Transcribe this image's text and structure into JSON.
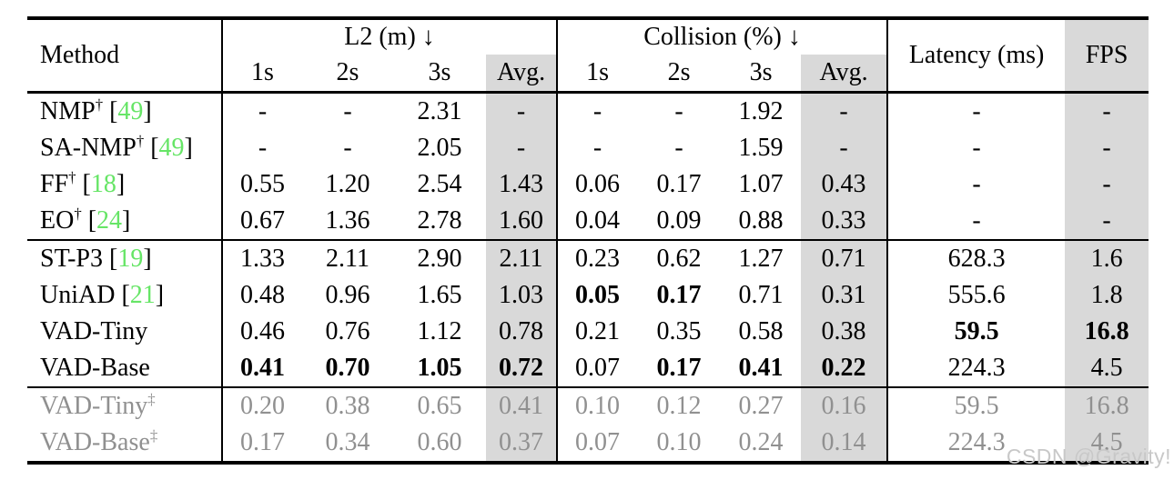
{
  "table": {
    "header": {
      "method": "Method",
      "l2_label": "L2 (m) ↓",
      "collision_label": "Collision (%) ↓",
      "sub_labels": [
        "1s",
        "2s",
        "3s",
        "Avg."
      ],
      "latency": "Latency (ms)",
      "fps": "FPS"
    },
    "groups": [
      {
        "muted": false,
        "rows": [
          {
            "name": "NMP",
            "marker": "†",
            "cite": "49",
            "cells": [
              "-",
              "-",
              "2.31",
              "-",
              "-",
              "-",
              "1.92",
              "-",
              "-",
              "-"
            ],
            "bold": []
          },
          {
            "name": "SA-NMP",
            "marker": "†",
            "cite": "49",
            "cells": [
              "-",
              "-",
              "2.05",
              "-",
              "-",
              "-",
              "1.59",
              "-",
              "-",
              "-"
            ],
            "bold": []
          },
          {
            "name": "FF",
            "marker": "†",
            "cite": "18",
            "cells": [
              "0.55",
              "1.20",
              "2.54",
              "1.43",
              "0.06",
              "0.17",
              "1.07",
              "0.43",
              "-",
              "-"
            ],
            "bold": []
          },
          {
            "name": "EO",
            "marker": "†",
            "cite": "24",
            "cells": [
              "0.67",
              "1.36",
              "2.78",
              "1.60",
              "0.04",
              "0.09",
              "0.88",
              "0.33",
              "-",
              "-"
            ],
            "bold": []
          }
        ]
      },
      {
        "muted": false,
        "rows": [
          {
            "name": "ST-P3",
            "marker": "",
            "cite": "19",
            "cells": [
              "1.33",
              "2.11",
              "2.90",
              "2.11",
              "0.23",
              "0.62",
              "1.27",
              "0.71",
              "628.3",
              "1.6"
            ],
            "bold": []
          },
          {
            "name": "UniAD",
            "marker": "",
            "cite": "21",
            "cells": [
              "0.48",
              "0.96",
              "1.65",
              "1.03",
              "0.05",
              "0.17",
              "0.71",
              "0.31",
              "555.6",
              "1.8"
            ],
            "bold": [
              4,
              5
            ]
          },
          {
            "name": "VAD-Tiny",
            "marker": "",
            "cite": "",
            "cells": [
              "0.46",
              "0.76",
              "1.12",
              "0.78",
              "0.21",
              "0.35",
              "0.58",
              "0.38",
              "59.5",
              "16.8"
            ],
            "bold": [
              8,
              9
            ]
          },
          {
            "name": "VAD-Base",
            "marker": "",
            "cite": "",
            "cells": [
              "0.41",
              "0.70",
              "1.05",
              "0.72",
              "0.07",
              "0.17",
              "0.41",
              "0.22",
              "224.3",
              "4.5"
            ],
            "bold": [
              0,
              1,
              2,
              3,
              5,
              6,
              7
            ]
          }
        ]
      },
      {
        "muted": true,
        "rows": [
          {
            "name": "VAD-Tiny",
            "marker": "‡",
            "cite": "",
            "cells": [
              "0.20",
              "0.38",
              "0.65",
              "0.41",
              "0.10",
              "0.12",
              "0.27",
              "0.16",
              "59.5",
              "16.8"
            ],
            "bold": []
          },
          {
            "name": "VAD-Base",
            "marker": "‡",
            "cite": "",
            "cells": [
              "0.17",
              "0.34",
              "0.60",
              "0.37",
              "0.07",
              "0.10",
              "0.24",
              "0.14",
              "224.3",
              "4.5"
            ],
            "bold": []
          }
        ]
      }
    ]
  },
  "watermark": "CSDN @Gravity!",
  "colors": {
    "citation_green": "#66e566",
    "highlight_gray": "#d9d9d9",
    "muted_text": "#909090",
    "watermark_gray": "#c8c8c8"
  }
}
